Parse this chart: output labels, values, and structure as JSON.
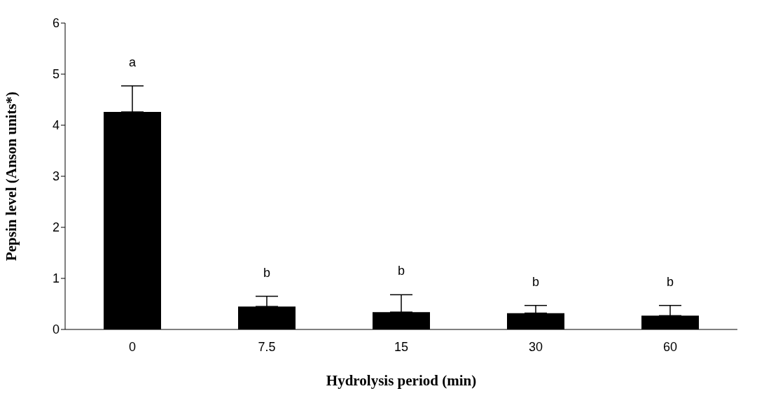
{
  "chart_data": {
    "type": "bar",
    "xlabel": "Hydrolysis period (min)",
    "ylabel": "Pepsin level (Anson units*)",
    "categories": [
      "0",
      "7.5",
      "15",
      "30",
      "60"
    ],
    "values": [
      4.26,
      0.45,
      0.34,
      0.32,
      0.27
    ],
    "errors": [
      [
        4.26,
        4.77
      ],
      [
        0.45,
        0.65
      ],
      [
        0.34,
        0.68
      ],
      [
        0.32,
        0.47
      ],
      [
        0.27,
        0.47
      ]
    ],
    "color": "#000000",
    "ylim": [
      0,
      6
    ],
    "yticks": [
      0,
      1,
      2,
      3,
      4,
      5,
      6
    ],
    "grid": false,
    "legend": false,
    "annotations": [
      "a",
      "b",
      "b",
      "b",
      "b"
    ]
  }
}
